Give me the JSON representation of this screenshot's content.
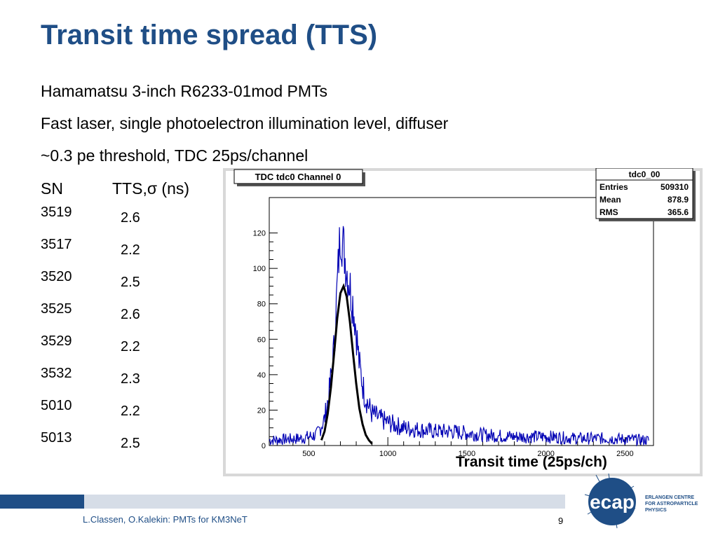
{
  "slide": {
    "title": "Transit time spread (TTS)",
    "bullets": [
      "Hamamatsu 3-inch R6233-01mod PMTs",
      "Fast laser, single photoelectron illumination level, diffuser",
      "~0.3 pe threshold, TDC 25ps/channel"
    ],
    "table": {
      "col_sn": "SN",
      "col_tts": "TTS,σ (ns)",
      "rows": [
        {
          "sn": "3519",
          "tts": "2.6"
        },
        {
          "sn": "3517",
          "tts": "2.2"
        },
        {
          "sn": "3520",
          "tts": "2.5"
        },
        {
          "sn": "3525",
          "tts": "2.6"
        },
        {
          "sn": "3529",
          "tts": "2.2"
        },
        {
          "sn": "3532",
          "tts": "2.3"
        },
        {
          "sn": "5010",
          "tts": "2.2"
        },
        {
          "sn": "5013",
          "tts": "2.5"
        }
      ]
    },
    "x_caption": "Transit time (25ps/ch)",
    "footer": "L.Classen, O.Kalekin: PMTs for KM3NeT",
    "page_number": "9",
    "logo": {
      "text": "ecap",
      "lines": [
        "ERLANGEN CENTRE",
        "FOR ASTROPARTICLE",
        "PHYSICS"
      ]
    },
    "colors": {
      "title": "#1f4e86",
      "histogram": "#0000b4",
      "fit": "#000000"
    }
  },
  "chart_data": {
    "type": "line",
    "title": "TDC tdc0 Channel 0",
    "xlim": [
      250,
      2680
    ],
    "ylim": [
      0,
      140
    ],
    "xticks": [
      500,
      1000,
      1500,
      2000,
      2500
    ],
    "yticks": [
      0,
      20,
      40,
      60,
      80,
      100,
      120
    ],
    "grid": false,
    "stats_box": {
      "name": "tdc0_00",
      "entries": [
        {
          "label": "Entries",
          "value": "509310"
        },
        {
          "label": "Mean",
          "value": "878.9"
        },
        {
          "label": "RMS",
          "value": "365.6"
        }
      ]
    },
    "series": [
      {
        "x": [
          250,
          450,
          550,
          600,
          630,
          660,
          680,
          700,
          720,
          740,
          760,
          780,
          800,
          820,
          850,
          880,
          900,
          950,
          1000,
          1100,
          1200,
          1300,
          1400,
          1500,
          1600,
          1800,
          2000,
          2200,
          2400,
          2650
        ],
        "values": [
          3,
          4,
          6,
          15,
          30,
          55,
          90,
          122,
          112,
          100,
          90,
          80,
          65,
          45,
          30,
          22,
          18,
          15,
          13,
          10,
          9,
          8,
          8,
          7,
          6,
          5,
          5,
          4,
          4,
          3
        ]
      },
      {
        "x": [
          580,
          600,
          620,
          640,
          660,
          680,
          700,
          720,
          740,
          760,
          780,
          800,
          820,
          840,
          860,
          880,
          900
        ],
        "values": [
          3,
          8,
          18,
          33,
          52,
          72,
          86,
          90,
          84,
          70,
          52,
          35,
          21,
          12,
          6,
          3,
          1
        ]
      }
    ]
  }
}
